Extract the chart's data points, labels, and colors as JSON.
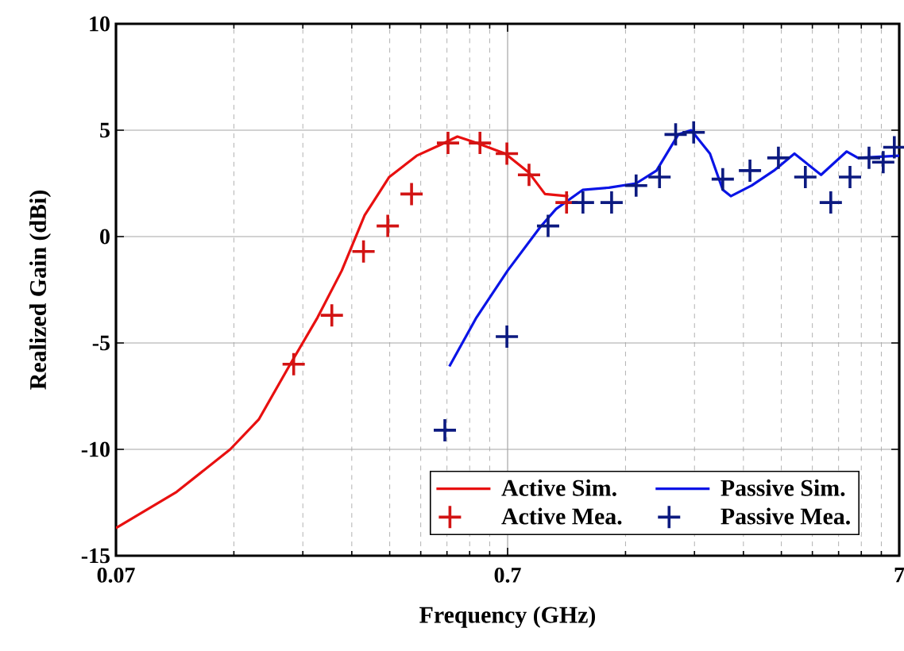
{
  "chart_data": {
    "type": "line",
    "xlabel": "Frequency (GHz)",
    "ylabel": "Realized Gain (dBi)",
    "log": "x",
    "grid": true,
    "legend": "bottom right",
    "xlim": [
      0.07,
      7
    ],
    "ylim": [
      -15,
      10
    ],
    "xticks": [
      0.07,
      {
        "value": 0.14,
        "label": null
      },
      {
        "value": 0.21,
        "label": null
      },
      {
        "value": 0.28,
        "label": null
      },
      {
        "value": 0.35,
        "label": null
      },
      {
        "value": 0.42,
        "label": null
      },
      {
        "value": 0.49,
        "label": null
      },
      {
        "value": 0.56,
        "label": null
      },
      {
        "value": 0.63,
        "label": null
      },
      0.7,
      {
        "value": 1.4,
        "label": null
      },
      {
        "value": 2.1,
        "label": null
      },
      {
        "value": 2.8,
        "label": null
      },
      {
        "value": 3.5,
        "label": null
      },
      {
        "value": 4.2,
        "label": null
      },
      {
        "value": 4.9,
        "label": null
      },
      {
        "value": 5.6,
        "label": null
      },
      {
        "value": 6.3,
        "label": null
      },
      7
    ],
    "yticks": [
      -15,
      -10,
      -5,
      0,
      5,
      10
    ],
    "series": [
      {
        "name": "Active Sim.",
        "color": "#e81010",
        "marker": "none",
        "x": [
          0.07,
          0.1,
          0.137,
          0.162,
          0.195,
          0.229,
          0.264,
          0.302,
          0.349,
          0.41,
          0.47,
          0.521,
          0.583,
          0.69,
          0.794,
          0.872,
          1.0
        ],
        "values": [
          -13.7,
          -12.0,
          -10.0,
          -8.6,
          -6.0,
          -3.8,
          -1.6,
          1.0,
          2.8,
          3.8,
          4.3,
          4.7,
          4.4,
          3.9,
          3.0,
          2.0,
          1.9
        ]
      },
      {
        "name": "Passive Sim.",
        "color": "#0a14e6",
        "marker": "none",
        "x": [
          0.497,
          0.583,
          0.7,
          0.848,
          0.931,
          1.09,
          1.27,
          1.49,
          1.68,
          1.91,
          2.06,
          2.3,
          2.48,
          2.6,
          2.94,
          3.35,
          3.78,
          4.42,
          5.14,
          5.49,
          7.0
        ],
        "values": [
          -6.1,
          -3.8,
          -1.6,
          0.45,
          1.3,
          2.2,
          2.3,
          2.5,
          3.1,
          4.8,
          5.0,
          3.9,
          2.2,
          1.9,
          2.4,
          3.1,
          3.9,
          2.9,
          4.0,
          3.7,
          3.8
        ]
      },
      {
        "name": "Active Mea.",
        "type": "scatter",
        "color": "#d21414",
        "marker": "cross",
        "x": [
          0.199,
          0.249,
          0.3,
          0.346,
          0.398,
          0.493,
          0.595,
          0.697,
          0.794,
          0.99
        ],
        "values": [
          -6.0,
          -3.7,
          -0.7,
          0.5,
          2.0,
          4.4,
          4.4,
          3.9,
          2.9,
          1.6
        ]
      },
      {
        "name": "Passive Mea.",
        "type": "scatter",
        "color": "#0c1a80",
        "marker": "cross",
        "x": [
          0.484,
          0.697,
          0.888,
          1.09,
          1.29,
          1.49,
          1.71,
          1.88,
          2.09,
          2.48,
          2.91,
          3.44,
          4.03,
          4.68,
          5.24,
          5.86,
          6.37,
          6.8
        ],
        "values": [
          -9.1,
          -4.7,
          0.5,
          1.6,
          1.6,
          2.4,
          2.8,
          4.8,
          4.9,
          2.7,
          3.1,
          3.7,
          2.8,
          1.6,
          2.8,
          3.7,
          3.5,
          4.2
        ]
      }
    ]
  }
}
